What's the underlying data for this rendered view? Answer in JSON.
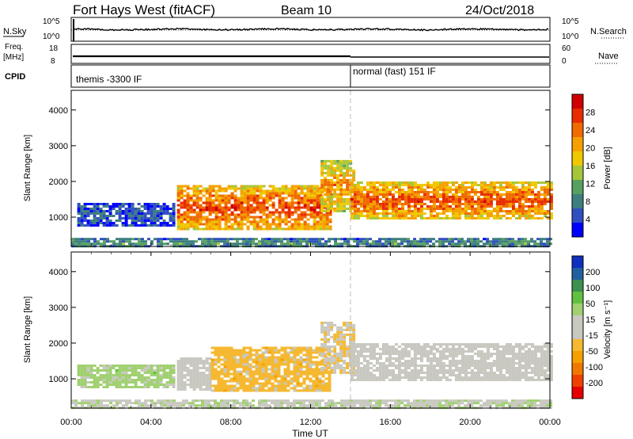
{
  "header": {
    "station": "Fort Hays West (fitACF)",
    "beam": "Beam 10",
    "date": "24/Oct/2018"
  },
  "strips": {
    "nsky_label": "N.Sky",
    "nsky_ticks": [
      "10^5",
      "10^0"
    ],
    "nsearch_label": "N.Search",
    "nsearch_ticks": [
      "10^5",
      "10^0"
    ],
    "freq_label": "Freq.",
    "freq_unit": "[MHz]",
    "freq_ticks": [
      "18",
      "8"
    ],
    "nave_label": "Nave",
    "nave_ticks": [
      "60",
      "0"
    ],
    "cpid_label": "CPID",
    "cpid_segments": [
      {
        "name": "themis -3300 IF",
        "start_hour": 0,
        "end_hour": 14
      },
      {
        "name": "normal (fast) 151 IF",
        "start_hour": 14,
        "end_hour": 24
      }
    ]
  },
  "chart_data": [
    {
      "type": "heatmap",
      "name": "power",
      "ylabel": "Slant Range [km]",
      "yticks": [
        "4000",
        "3000",
        "2000",
        "1000"
      ],
      "ytick_values": [
        4000,
        3000,
        2000,
        1000
      ],
      "ylim": [
        180,
        4550
      ],
      "xlim": [
        0,
        24
      ],
      "colorbar": {
        "label": "Power [dB]",
        "ticks": [
          "28",
          "24",
          "20",
          "16",
          "12",
          "8",
          "4"
        ],
        "range": [
          0,
          32
        ],
        "colors": [
          "#0000ff",
          "#3050c0",
          "#3d7f7f",
          "#58a060",
          "#a6c63a",
          "#f0c800",
          "#f5a000",
          "#f06a00",
          "#e82c00",
          "#d00000"
        ]
      },
      "bands": [
        {
          "start_hour": 0.3,
          "end_hour": 5.2,
          "range_km": [
            800,
            1400
          ],
          "power_db": 6
        },
        {
          "start_hour": 5.3,
          "end_hour": 13.0,
          "range_km": [
            700,
            1900
          ],
          "power_db": 27
        },
        {
          "start_hour": 12.5,
          "end_hour": 14.2,
          "range_km": [
            1200,
            2600
          ],
          "power_db": 22
        },
        {
          "start_hour": 14.0,
          "end_hour": 24.0,
          "range_km": [
            1000,
            2000
          ],
          "power_db": 26
        },
        {
          "start_hour": 0.0,
          "end_hour": 24.0,
          "range_km": [
            200,
            420
          ],
          "power_db": 10
        }
      ]
    },
    {
      "type": "heatmap",
      "name": "velocity",
      "ylabel": "Slant Range [km]",
      "yticks": [
        "4000",
        "3000",
        "2000",
        "1000"
      ],
      "ytick_values": [
        4000,
        3000,
        2000,
        1000
      ],
      "ylim": [
        180,
        4550
      ],
      "xlim": [
        0,
        24
      ],
      "colorbar": {
        "label": "Velocity [m s⁻¹]",
        "ticks": [
          "200",
          "100",
          "50",
          "15",
          "-15",
          "-50",
          "-100",
          "-200"
        ],
        "range": [
          -250,
          250
        ],
        "colors": [
          "#e60000",
          "#f04000",
          "#f07800",
          "#f5a000",
          "#f5b830",
          "#c8c8c0",
          "#c8c8c0",
          "#a0d070",
          "#60c040",
          "#3d9050",
          "#2060a0",
          "#1030c0"
        ]
      },
      "bands": [
        {
          "start_hour": 0.3,
          "end_hour": 5.2,
          "range_km": [
            800,
            1400
          ],
          "velocity": 60
        },
        {
          "start_hour": 5.3,
          "end_hour": 7.0,
          "range_km": [
            700,
            1600
          ],
          "velocity": 0
        },
        {
          "start_hour": 7.0,
          "end_hour": 13.0,
          "range_km": [
            700,
            1900
          ],
          "velocity": -60
        },
        {
          "start_hour": 12.5,
          "end_hour": 14.2,
          "range_km": [
            1200,
            2600
          ],
          "velocity": -40
        },
        {
          "start_hour": 14.0,
          "end_hour": 24.0,
          "range_km": [
            1000,
            2000
          ],
          "velocity": 0
        },
        {
          "start_hour": 0.0,
          "end_hour": 24.0,
          "range_km": [
            200,
            420
          ],
          "velocity": 30
        }
      ]
    }
  ],
  "xaxis": {
    "ticks": [
      "00:00",
      "04:00",
      "08:00",
      "12:00",
      "16:00",
      "20:00",
      "00:00"
    ],
    "tick_hours": [
      0,
      4,
      8,
      12,
      16,
      20,
      24
    ],
    "xlabel": "Time UT"
  }
}
